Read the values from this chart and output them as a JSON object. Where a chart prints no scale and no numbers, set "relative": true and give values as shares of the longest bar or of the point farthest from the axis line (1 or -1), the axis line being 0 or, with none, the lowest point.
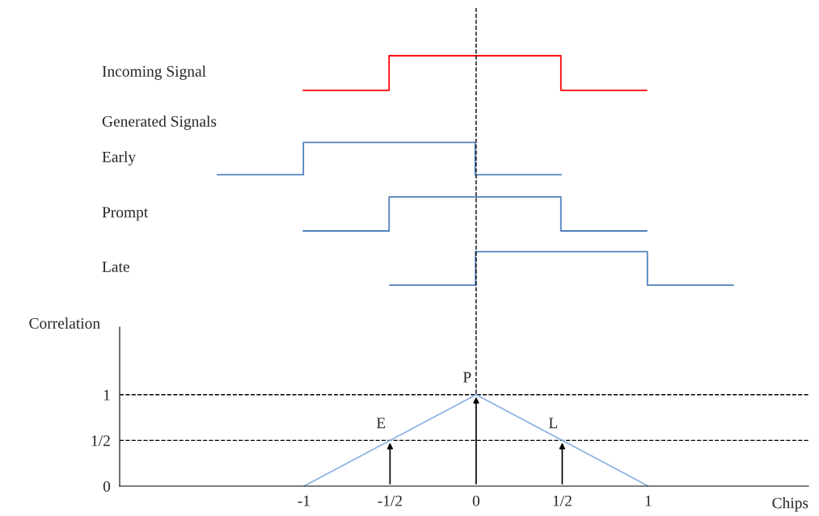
{
  "chart_data": [
    {
      "type": "step",
      "relative": true,
      "tick_labels": false,
      "categories": [
        null,
        null,
        null,
        null,
        null
      ],
      "series": [
        {
          "name": "Incoming Signal",
          "color": "#ff0000",
          "values": [
            0,
            1,
            1,
            0,
            0
          ]
        }
      ]
    },
    {
      "type": "step",
      "relative": true,
      "title": "Generated Signals",
      "tick_labels": false,
      "categories": [
        null,
        null,
        null,
        null,
        null
      ],
      "series": [
        {
          "name": "Early",
          "color": "#4f81bd",
          "values": [
            0,
            1,
            1,
            0,
            0
          ]
        }
      ]
    },
    {
      "type": "step",
      "relative": true,
      "tick_labels": false,
      "categories": [
        null,
        null,
        null,
        null,
        null
      ],
      "series": [
        {
          "name": "Prompt",
          "color": "#4f81bd",
          "values": [
            0,
            1,
            1,
            0,
            0
          ]
        }
      ]
    },
    {
      "type": "step",
      "relative": true,
      "tick_labels": false,
      "categories": [
        null,
        null,
        null,
        null,
        null
      ],
      "series": [
        {
          "name": "Late",
          "color": "#4f81bd",
          "values": [
            0,
            1,
            1,
            0,
            0
          ]
        }
      ]
    },
    {
      "type": "line",
      "xlabel": "Chips",
      "ylabel": "Correlation",
      "xlim": [
        -2.07,
        1.93
      ],
      "ylim": [
        0,
        1.74
      ],
      "xticks": [
        -1,
        {
          "value": -0.5,
          "label": "-1/2"
        },
        0,
        {
          "value": 0.5,
          "label": "1/2"
        },
        1
      ],
      "yticks": [
        0,
        {
          "value": 0.5,
          "label": "1/2"
        },
        1
      ],
      "series": [
        {
          "color": "#8eb4e3",
          "x": [
            -1,
            0,
            1
          ],
          "values": [
            0,
            1,
            0
          ]
        }
      ],
      "ref_lines": [
        {
          "axis": "y",
          "value": 1,
          "line_style": "dashed",
          "color": "#000000"
        },
        {
          "axis": "y",
          "value": 0.5,
          "line_style": "dashed",
          "color": "#000000"
        },
        {
          "axis": "x",
          "value": 0,
          "line_style": "dashed",
          "color": "#000000"
        }
      ],
      "annotations": [
        {
          "text": "E",
          "x": -0.5,
          "y": 0.5
        },
        {
          "text": "P",
          "x": 0,
          "y": 1
        },
        {
          "text": "L",
          "x": 0.5,
          "y": 0.5
        }
      ]
    }
  ]
}
